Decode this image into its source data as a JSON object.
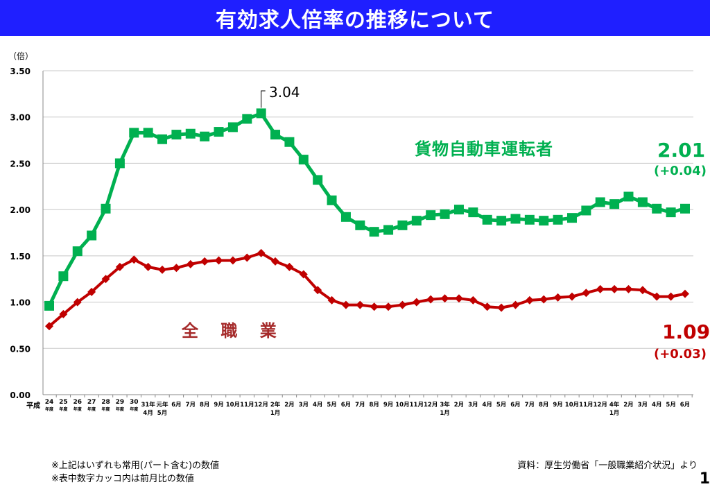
{
  "title": "有効求人倍率の推移について",
  "notes": [
    "※上記はいずれも常用(パート含む)の数値",
    "※表中数字カッコ内は前月比の数値"
  ],
  "source": "資料：厚生労働省「一般職業紹介状況」より",
  "page_number": "1",
  "chart_data": {
    "type": "line",
    "unit_label": "（倍）",
    "era_label": "平成",
    "ylim": [
      0,
      3.5
    ],
    "yticks": [
      "0.00",
      "0.50",
      "1.00",
      "1.50",
      "2.00",
      "2.50",
      "3.00",
      "3.50"
    ],
    "grid": true,
    "categories": [
      [
        "24",
        "年度"
      ],
      [
        "25",
        "年度"
      ],
      [
        "26",
        "年度"
      ],
      [
        "27",
        "年度"
      ],
      [
        "28",
        "年度"
      ],
      [
        "29",
        "年度"
      ],
      [
        "30",
        "年度"
      ],
      [
        "31年",
        "4月"
      ],
      [
        "元年",
        "5月"
      ],
      [
        "6月",
        ""
      ],
      [
        "7月",
        ""
      ],
      [
        "8月",
        ""
      ],
      [
        "9月",
        ""
      ],
      [
        "10月",
        ""
      ],
      [
        "11月",
        ""
      ],
      [
        "12月",
        ""
      ],
      [
        "2年",
        "1月"
      ],
      [
        "2月",
        ""
      ],
      [
        "3月",
        ""
      ],
      [
        "4月",
        ""
      ],
      [
        "5月",
        ""
      ],
      [
        "6月",
        ""
      ],
      [
        "7月",
        ""
      ],
      [
        "8月",
        ""
      ],
      [
        "9月",
        ""
      ],
      [
        "10月",
        ""
      ],
      [
        "11月",
        ""
      ],
      [
        "12月",
        ""
      ],
      [
        "3年",
        "1月"
      ],
      [
        "2月",
        ""
      ],
      [
        "3月",
        ""
      ],
      [
        "4月",
        ""
      ],
      [
        "5月",
        ""
      ],
      [
        "6月",
        ""
      ],
      [
        "7月",
        ""
      ],
      [
        "8月",
        ""
      ],
      [
        "9月",
        ""
      ],
      [
        "10月",
        ""
      ],
      [
        "11月",
        ""
      ],
      [
        "12月",
        ""
      ],
      [
        "4年",
        "1月"
      ],
      [
        "2月",
        ""
      ],
      [
        "3月",
        ""
      ],
      [
        "4月",
        ""
      ],
      [
        "5月",
        ""
      ],
      [
        "6月",
        ""
      ]
    ],
    "series": [
      {
        "name": "貨物自動車運転者",
        "color": "#00b050",
        "marker": "square",
        "values": [
          0.96,
          1.28,
          1.55,
          1.72,
          2.01,
          2.5,
          2.83,
          2.83,
          2.76,
          2.81,
          2.82,
          2.79,
          2.84,
          2.89,
          2.98,
          3.04,
          2.81,
          2.73,
          2.54,
          2.32,
          2.1,
          1.92,
          1.83,
          1.76,
          1.78,
          1.83,
          1.88,
          1.94,
          1.95,
          2.0,
          1.97,
          1.89,
          1.88,
          1.9,
          1.89,
          1.88,
          1.89,
          1.91,
          1.99,
          2.08,
          2.06,
          2.14,
          2.08,
          2.01,
          1.97,
          2.01
        ],
        "latest_label": "2.01",
        "change_label": "(+0.04)"
      },
      {
        "name": "全 職 業",
        "color": "#c00000",
        "marker": "diamond",
        "values": [
          0.74,
          0.87,
          1.0,
          1.11,
          1.25,
          1.38,
          1.46,
          1.38,
          1.35,
          1.37,
          1.41,
          1.44,
          1.45,
          1.45,
          1.48,
          1.53,
          1.44,
          1.38,
          1.3,
          1.13,
          1.02,
          0.97,
          0.97,
          0.95,
          0.95,
          0.97,
          1.0,
          1.03,
          1.04,
          1.04,
          1.02,
          0.95,
          0.94,
          0.97,
          1.02,
          1.03,
          1.05,
          1.06,
          1.1,
          1.14,
          1.14,
          1.14,
          1.13,
          1.06,
          1.06,
          1.09
        ],
        "latest_label": "1.09",
        "change_label": "(+0.03)"
      }
    ],
    "annotations": [
      {
        "text": "3.04",
        "series": 0,
        "index": 15
      }
    ]
  }
}
